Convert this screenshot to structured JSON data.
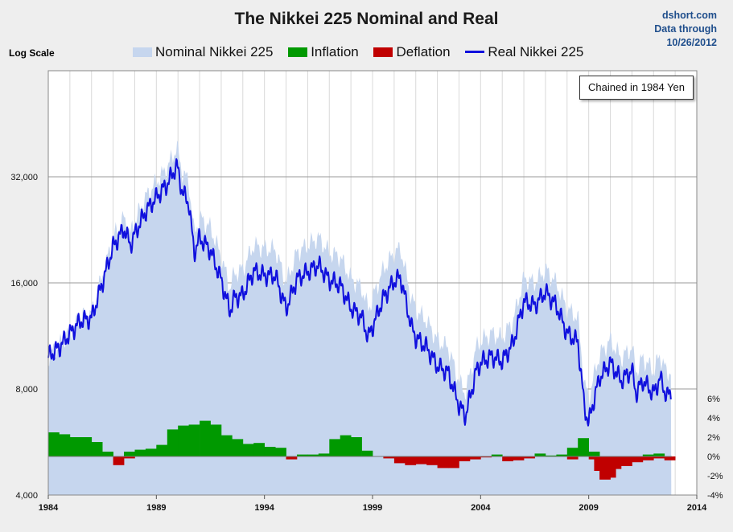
{
  "title": "The Nikkei 225 Nominal and Real",
  "source": {
    "line1": "dshort.com",
    "line2": "Data through",
    "line3": "10/26/2012"
  },
  "log_scale_label": "Log Scale",
  "note": "Chained in 1984 Yen",
  "colors": {
    "nominal": "#c6d6ee",
    "inflation": "#009900",
    "deflation": "#c00000",
    "real": "#1010dd"
  },
  "chart_data": {
    "type": "area",
    "title": "The Nikkei 225 Nominal and Real",
    "x_axis": {
      "min": 1984,
      "max": 2014,
      "ticks": [
        "1984",
        "1989",
        "1994",
        "1999",
        "2004",
        "2009",
        "2014"
      ]
    },
    "y_left": {
      "scale": "log",
      "min": 4000,
      "max": 64000,
      "ticks": [
        "4,000",
        "8,000",
        "16,000",
        "32,000"
      ]
    },
    "y_right": {
      "min": -4,
      "max": 6,
      "ticks": [
        "6%",
        "4%",
        "2%",
        "0%",
        "-2%",
        "-4%"
      ]
    },
    "grid": "on",
    "legend_position": "top",
    "series": [
      {
        "name": "Nominal Nikkei 225",
        "kind": "area",
        "axis": "left",
        "x": [
          1984.0,
          1984.5,
          1985.0,
          1985.5,
          1986.0,
          1986.5,
          1987.0,
          1987.5,
          1987.8,
          1988.0,
          1988.5,
          1989.0,
          1989.5,
          1989.95,
          1990.2,
          1990.5,
          1990.75,
          1991.0,
          1991.5,
          1992.0,
          1992.4,
          1992.6,
          1993.0,
          1993.5,
          1994.0,
          1994.5,
          1995.0,
          1995.5,
          1996.0,
          1996.5,
          1997.0,
          1997.5,
          1998.0,
          1998.5,
          1998.8,
          1999.0,
          1999.5,
          2000.0,
          2000.3,
          2000.8,
          2001.0,
          2001.5,
          2002.0,
          2002.5,
          2003.0,
          2003.3,
          2003.8,
          2004.0,
          2004.5,
          2005.0,
          2005.5,
          2006.0,
          2006.5,
          2007.0,
          2007.5,
          2008.0,
          2008.5,
          2008.8,
          2009.0,
          2009.2,
          2009.5,
          2010.0,
          2010.5,
          2011.0,
          2011.2,
          2011.5,
          2012.0,
          2012.3,
          2012.6,
          2012.82
        ],
        "y": [
          9900,
          10600,
          11600,
          12800,
          13100,
          16800,
          21500,
          24500,
          22000,
          24000,
          28000,
          31000,
          34000,
          38900,
          33000,
          31000,
          22000,
          24500,
          23000,
          19000,
          15500,
          17000,
          17500,
          20500,
          20000,
          20000,
          16000,
          19500,
          20500,
          21500,
          19500,
          19000,
          16500,
          15500,
          13500,
          14500,
          17500,
          19500,
          20000,
          14500,
          13500,
          12500,
          11000,
          10500,
          8400,
          7800,
          10500,
          11000,
          11500,
          11200,
          12500,
          16500,
          16000,
          17500,
          16000,
          13500,
          12800,
          8300,
          7500,
          8500,
          10000,
          11000,
          9800,
          10500,
          9000,
          9800,
          9000,
          10000,
          8900,
          9000
        ]
      },
      {
        "name": "Real Nikkei 225",
        "kind": "line",
        "axis": "left",
        "x": [
          1984.0,
          1984.5,
          1985.0,
          1985.5,
          1986.0,
          1986.5,
          1987.0,
          1987.5,
          1987.8,
          1988.0,
          1988.5,
          1989.0,
          1989.5,
          1989.95,
          1990.2,
          1990.5,
          1990.75,
          1991.0,
          1991.5,
          1992.0,
          1992.4,
          1992.6,
          1993.0,
          1993.5,
          1994.0,
          1994.5,
          1995.0,
          1995.5,
          1996.0,
          1996.5,
          1997.0,
          1997.5,
          1998.0,
          1998.5,
          1998.8,
          1999.0,
          1999.5,
          2000.0,
          2000.3,
          2000.8,
          2001.0,
          2001.5,
          2002.0,
          2002.5,
          2003.0,
          2003.3,
          2003.8,
          2004.0,
          2004.5,
          2005.0,
          2005.5,
          2006.0,
          2006.5,
          2007.0,
          2007.5,
          2008.0,
          2008.5,
          2008.8,
          2009.0,
          2009.2,
          2009.5,
          2010.0,
          2010.5,
          2011.0,
          2011.2,
          2011.5,
          2012.0,
          2012.3,
          2012.6,
          2012.82
        ],
        "y": [
          9900,
          10500,
          11500,
          12500,
          12700,
          16000,
          20300,
          22800,
          20500,
          22000,
          25500,
          28000,
          30500,
          34500,
          29000,
          27000,
          19500,
          21500,
          19800,
          16300,
          13300,
          14500,
          14800,
          17300,
          16800,
          16800,
          13500,
          16400,
          17200,
          18000,
          16300,
          15800,
          13600,
          12800,
          11200,
          12000,
          14500,
          16200,
          16600,
          12000,
          11200,
          10500,
          9300,
          8900,
          7200,
          6700,
          9000,
          9500,
          9900,
          9600,
          10800,
          14200,
          13800,
          15100,
          13800,
          11500,
          10900,
          7100,
          6400,
          7300,
          8600,
          9500,
          8450,
          9050,
          7750,
          8450,
          7750,
          8600,
          7650,
          7750
        ]
      },
      {
        "name": "Inflation",
        "kind": "bar",
        "axis": "right",
        "x": [
          1984.0,
          1984.5,
          1985.0,
          1985.5,
          1986.0,
          1986.5,
          1987.0,
          1987.5,
          1988.0,
          1988.5,
          1989.0,
          1989.5,
          1990.0,
          1990.5,
          1991.0,
          1991.5,
          1992.0,
          1992.5,
          1993.0,
          1993.5,
          1994.0,
          1994.5,
          1995.0,
          1995.5,
          1996.0,
          1996.5,
          1997.0,
          1997.5,
          1998.0,
          1998.5,
          1999.0,
          2004.5,
          2006.5,
          2007.0,
          2007.5,
          2008.0,
          2008.5,
          2009.0,
          2011.5,
          2012.0
        ],
        "y": [
          2.5,
          2.3,
          2.0,
          2.0,
          1.5,
          0.5,
          0.0,
          0.5,
          0.7,
          0.8,
          1.2,
          2.8,
          3.2,
          3.3,
          3.7,
          3.3,
          2.2,
          1.8,
          1.3,
          1.4,
          1.0,
          0.9,
          0.0,
          0.2,
          0.2,
          0.3,
          1.8,
          2.2,
          2.0,
          0.6,
          0.0,
          0.2,
          0.3,
          0.1,
          0.2,
          0.9,
          1.9,
          0.5,
          0.2,
          0.3
        ]
      },
      {
        "name": "Deflation",
        "kind": "bar",
        "axis": "right",
        "x": [
          1987.0,
          1987.5,
          1995.0,
          1999.5,
          2000.0,
          2000.5,
          2001.0,
          2001.5,
          2002.0,
          2002.5,
          2003.0,
          2003.5,
          2004.0,
          2005.0,
          2005.5,
          2006.0,
          2008.0,
          2009.0,
          2009.25,
          2009.5,
          2009.75,
          2010.0,
          2010.5,
          2011.0,
          2011.5,
          2012.0,
          2012.5
        ],
        "y": [
          -0.9,
          -0.2,
          -0.3,
          -0.2,
          -0.7,
          -0.9,
          -0.8,
          -0.9,
          -1.2,
          -1.2,
          -0.5,
          -0.3,
          -0.1,
          -0.5,
          -0.4,
          -0.2,
          -0.3,
          -0.3,
          -1.5,
          -2.4,
          -2.2,
          -1.3,
          -1.0,
          -0.6,
          -0.4,
          -0.2,
          -0.4
        ]
      }
    ]
  }
}
